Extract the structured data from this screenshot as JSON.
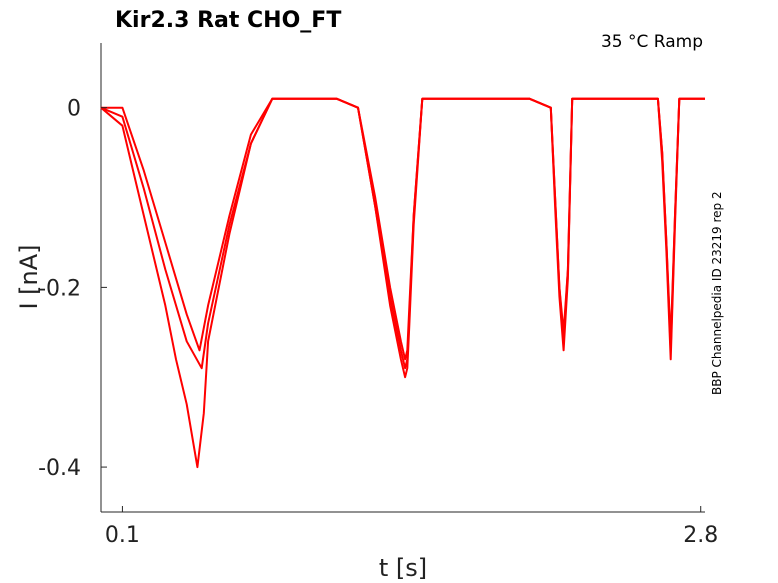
{
  "chart_data": {
    "type": "line",
    "title": "Kir2.3  Rat  CHO_FT",
    "subtitle": "35 °C  Ramp",
    "side_label": "BBP Channelpedia ID 23219 rep 2",
    "xlabel": "t [s]",
    "ylabel": "I [nA]",
    "xlim": [
      0.0,
      2.82
    ],
    "ylim": [
      -0.45,
      0.072
    ],
    "x_ticks": [
      {
        "value": 0.1,
        "label": "0.1"
      },
      {
        "value": 2.8,
        "label": "2.8"
      }
    ],
    "y_ticks": [
      {
        "value": 0,
        "label": "0"
      },
      {
        "value": -0.2,
        "label": "-0.2"
      },
      {
        "value": -0.4,
        "label": "-0.4"
      }
    ],
    "grid": false,
    "line_color": "#ff0000",
    "series": [
      {
        "x": [
          0.0,
          0.1,
          0.2,
          0.3,
          0.4,
          0.46,
          0.5,
          0.6,
          0.7,
          0.8,
          0.9,
          1.0,
          1.1,
          1.2,
          1.28,
          1.35,
          1.4,
          1.42,
          1.43,
          1.44,
          1.46,
          1.5,
          1.6,
          1.7,
          1.8,
          1.9,
          2.0,
          2.1,
          2.12,
          2.14,
          2.16,
          2.18,
          2.2,
          2.3,
          2.4,
          2.5,
          2.6,
          2.62,
          2.64,
          2.66,
          2.68,
          2.7,
          2.82
        ],
        "y": [
          0.0,
          0.0,
          -0.07,
          -0.15,
          -0.23,
          -0.27,
          -0.22,
          -0.12,
          -0.03,
          0.01,
          0.01,
          0.01,
          0.01,
          0.0,
          -0.1,
          -0.2,
          -0.26,
          -0.28,
          -0.27,
          -0.22,
          -0.12,
          0.01,
          0.01,
          0.01,
          0.01,
          0.01,
          0.01,
          0.0,
          -0.1,
          -0.2,
          -0.26,
          -0.18,
          0.01,
          0.01,
          0.01,
          0.01,
          0.01,
          -0.05,
          -0.15,
          -0.26,
          -0.12,
          0.01,
          0.01
        ]
      },
      {
        "x": [
          0.0,
          0.1,
          0.2,
          0.3,
          0.4,
          0.47,
          0.5,
          0.6,
          0.7,
          0.8,
          0.9,
          1.0,
          1.1,
          1.2,
          1.28,
          1.35,
          1.4,
          1.42,
          1.43,
          1.44,
          1.46,
          1.5,
          1.6,
          1.7,
          1.8,
          1.9,
          2.0,
          2.1,
          2.12,
          2.14,
          2.16,
          2.18,
          2.2,
          2.3,
          2.4,
          2.5,
          2.6,
          2.62,
          2.64,
          2.66,
          2.68,
          2.7,
          2.82
        ],
        "y": [
          0.0,
          -0.01,
          -0.09,
          -0.18,
          -0.26,
          -0.29,
          -0.24,
          -0.13,
          -0.04,
          0.01,
          0.01,
          0.01,
          0.01,
          0.0,
          -0.11,
          -0.22,
          -0.28,
          -0.3,
          -0.29,
          -0.24,
          -0.13,
          0.01,
          0.01,
          0.01,
          0.01,
          0.01,
          0.01,
          0.0,
          -0.11,
          -0.21,
          -0.27,
          -0.19,
          0.01,
          0.01,
          0.01,
          0.01,
          0.01,
          -0.06,
          -0.16,
          -0.28,
          -0.13,
          0.01,
          0.01
        ]
      },
      {
        "x": [
          0.0,
          0.1,
          0.2,
          0.3,
          0.35,
          0.4,
          0.45,
          0.48,
          0.5,
          0.6,
          0.7,
          0.8,
          0.9,
          1.0,
          1.1,
          1.2,
          1.28,
          1.35,
          1.4,
          1.42,
          1.43,
          1.44,
          1.46,
          1.5,
          1.6,
          1.7,
          1.8,
          1.9,
          2.0,
          2.1,
          2.12,
          2.14,
          2.16,
          2.18,
          2.2,
          2.3,
          2.4,
          2.5,
          2.6,
          2.62,
          2.64,
          2.66,
          2.68,
          2.7,
          2.82
        ],
        "y": [
          0.0,
          -0.02,
          -0.12,
          -0.22,
          -0.28,
          -0.33,
          -0.4,
          -0.34,
          -0.26,
          -0.14,
          -0.04,
          0.01,
          0.01,
          0.01,
          0.01,
          0.0,
          -0.11,
          -0.21,
          -0.27,
          -0.29,
          -0.28,
          -0.23,
          -0.12,
          0.01,
          0.01,
          0.01,
          0.01,
          0.01,
          0.01,
          0.0,
          -0.1,
          -0.2,
          -0.25,
          -0.18,
          0.01,
          0.01,
          0.01,
          0.01,
          0.01,
          -0.05,
          -0.15,
          -0.27,
          -0.12,
          0.01,
          0.01
        ]
      }
    ]
  }
}
